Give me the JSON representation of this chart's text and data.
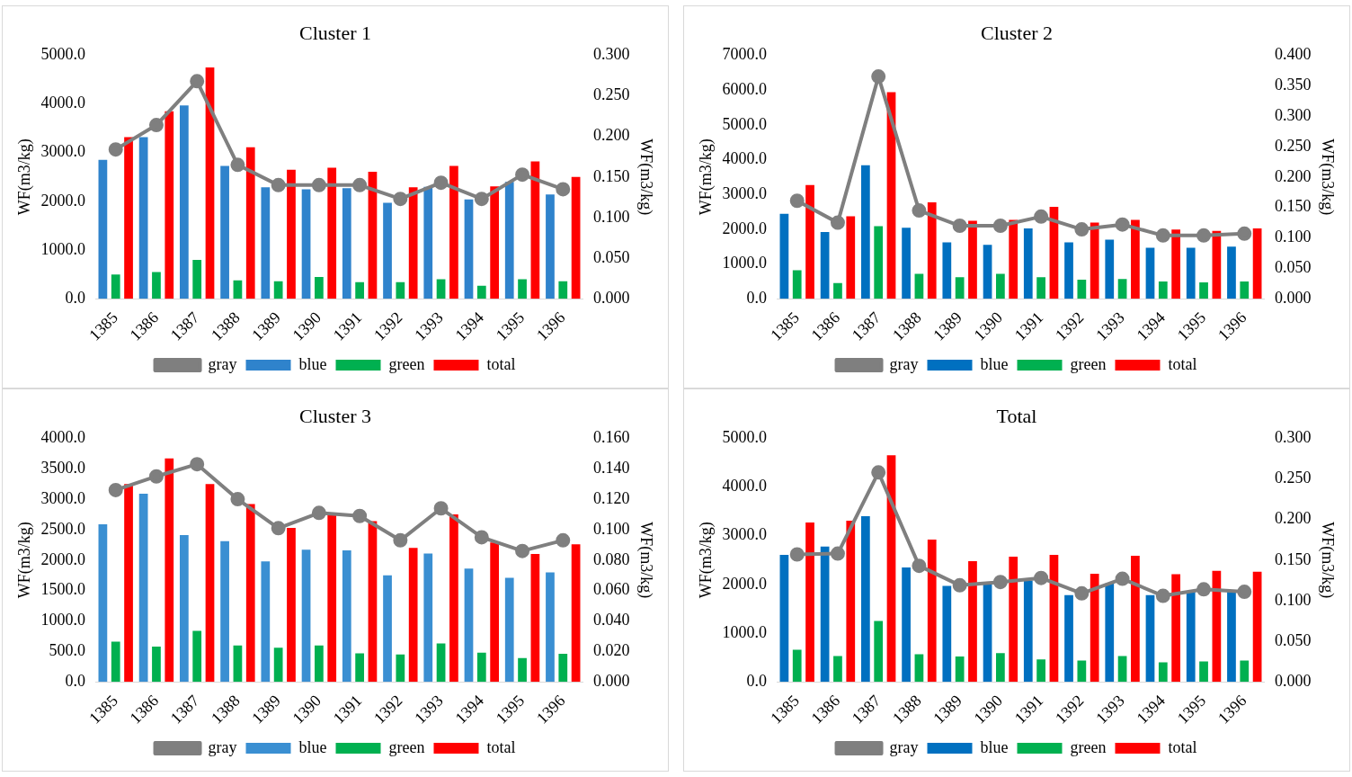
{
  "chart_data": [
    {
      "type": "bar",
      "title": "Cluster 1",
      "ylabel": "WF(m3/kg)",
      "y2label": "WF(m3/kg)",
      "categories": [
        "1385",
        "1386",
        "1387",
        "1388",
        "1389",
        "1390",
        "1391",
        "1392",
        "1393",
        "1394",
        "1395",
        "1396"
      ],
      "ylim": [
        0,
        5000
      ],
      "yticks": [
        {
          "value": 0,
          "label": "0.0"
        },
        {
          "value": 1000,
          "label": "1000.0"
        },
        {
          "value": 2000,
          "label": "2000.0"
        },
        {
          "value": 3000,
          "label": "3000.0"
        },
        {
          "value": 4000,
          "label": "4000.0"
        },
        {
          "value": 5000,
          "label": "5000.0"
        }
      ],
      "y2lim": [
        0,
        0.3
      ],
      "y2ticks": [
        {
          "value": 0,
          "label": "0.000"
        },
        {
          "value": 0.05,
          "label": "0.050"
        },
        {
          "value": 0.1,
          "label": "0.100"
        },
        {
          "value": 0.15,
          "label": "0.150"
        },
        {
          "value": 0.2,
          "label": "0.200"
        },
        {
          "value": 0.25,
          "label": "0.250"
        },
        {
          "value": 0.3,
          "label": "0.300"
        }
      ],
      "grid": false,
      "legend": "bottom",
      "series": [
        {
          "name": "blue",
          "color": "#2f83cc",
          "values": [
            2850,
            3320,
            3970,
            2730,
            2290,
            2250,
            2270,
            1970,
            2300,
            2040,
            2400,
            2140
          ]
        },
        {
          "name": "green",
          "color": "#00b050",
          "values": [
            500,
            550,
            800,
            380,
            360,
            450,
            340,
            340,
            400,
            270,
            400,
            360
          ]
        },
        {
          "name": "total",
          "color": "#ff0000",
          "values": [
            3320,
            3850,
            4750,
            3110,
            2650,
            2690,
            2610,
            2290,
            2730,
            2310,
            2820,
            2500
          ]
        },
        {
          "name": "gray",
          "color": "#7f7f7f",
          "type": "line",
          "axis": "y2",
          "marker": "circle",
          "values": [
            0.184,
            0.214,
            0.268,
            0.165,
            0.14,
            0.14,
            0.14,
            0.123,
            0.143,
            0.123,
            0.153,
            0.135
          ]
        }
      ]
    },
    {
      "type": "bar",
      "title": "Cluster 2",
      "ylabel": "WF(m3/kg)",
      "y2label": "WF(m3/kg)",
      "categories": [
        "1385",
        "1386",
        "1387",
        "1388",
        "1389",
        "1390",
        "1391",
        "1392",
        "1393",
        "1394",
        "1395",
        "1396"
      ],
      "ylim": [
        0,
        7000
      ],
      "yticks": [
        {
          "value": 0,
          "label": "0.0"
        },
        {
          "value": 1000,
          "label": "1000.0"
        },
        {
          "value": 2000,
          "label": "2000.0"
        },
        {
          "value": 3000,
          "label": "3000.0"
        },
        {
          "value": 4000,
          "label": "4000.0"
        },
        {
          "value": 5000,
          "label": "5000.0"
        },
        {
          "value": 6000,
          "label": "6000.0"
        },
        {
          "value": 7000,
          "label": "7000.0"
        }
      ],
      "y2lim": [
        0,
        0.4
      ],
      "y2ticks": [
        {
          "value": 0,
          "label": "0.000"
        },
        {
          "value": 0.05,
          "label": "0.050"
        },
        {
          "value": 0.1,
          "label": "0.100"
        },
        {
          "value": 0.15,
          "label": "0.150"
        },
        {
          "value": 0.2,
          "label": "0.200"
        },
        {
          "value": 0.25,
          "label": "0.250"
        },
        {
          "value": 0.3,
          "label": "0.300"
        },
        {
          "value": 0.35,
          "label": "0.350"
        },
        {
          "value": 0.4,
          "label": "0.400"
        }
      ],
      "grid": false,
      "legend": "bottom",
      "series": [
        {
          "name": "blue",
          "color": "#0070c0",
          "values": [
            2440,
            1920,
            3840,
            2040,
            1620,
            1550,
            2020,
            1620,
            1700,
            1470,
            1470,
            1500
          ]
        },
        {
          "name": "green",
          "color": "#00b050",
          "values": [
            820,
            450,
            2090,
            720,
            620,
            720,
            620,
            550,
            570,
            500,
            470,
            500
          ]
        },
        {
          "name": "total",
          "color": "#ff0000",
          "values": [
            3270,
            2370,
            5940,
            2770,
            2240,
            2270,
            2640,
            2190,
            2270,
            1990,
            1950,
            2020
          ]
        },
        {
          "name": "gray",
          "color": "#7f7f7f",
          "type": "line",
          "axis": "y2",
          "marker": "circle",
          "values": [
            0.161,
            0.125,
            0.365,
            0.145,
            0.12,
            0.12,
            0.135,
            0.114,
            0.122,
            0.104,
            0.104,
            0.107
          ]
        }
      ]
    },
    {
      "type": "bar",
      "title": "Cluster 3",
      "ylabel": "WF(m3/kg)",
      "y2label": "WF(m3/kg)",
      "categories": [
        "1385",
        "1386",
        "1387",
        "1388",
        "1389",
        "1390",
        "1391",
        "1392",
        "1393",
        "1394",
        "1395",
        "1396"
      ],
      "ylim": [
        0,
        4000
      ],
      "yticks": [
        {
          "value": 0,
          "label": "0.0"
        },
        {
          "value": 500,
          "label": "500.0"
        },
        {
          "value": 1000,
          "label": "1000.0"
        },
        {
          "value": 1500,
          "label": "1500.0"
        },
        {
          "value": 2000,
          "label": "2000.0"
        },
        {
          "value": 2500,
          "label": "2500.0"
        },
        {
          "value": 3000,
          "label": "3000.0"
        },
        {
          "value": 3500,
          "label": "3500.0"
        },
        {
          "value": 4000,
          "label": "4000.0"
        }
      ],
      "y2lim": [
        0,
        0.16
      ],
      "y2ticks": [
        {
          "value": 0,
          "label": "0.000"
        },
        {
          "value": 0.02,
          "label": "0.020"
        },
        {
          "value": 0.04,
          "label": "0.040"
        },
        {
          "value": 0.06,
          "label": "0.060"
        },
        {
          "value": 0.08,
          "label": "0.080"
        },
        {
          "value": 0.1,
          "label": "0.100"
        },
        {
          "value": 0.12,
          "label": "0.120"
        },
        {
          "value": 0.14,
          "label": "0.140"
        },
        {
          "value": 0.16,
          "label": "0.160"
        }
      ],
      "grid": false,
      "legend": "bottom",
      "series": [
        {
          "name": "blue",
          "color": "#3a8fd2",
          "values": [
            2590,
            3090,
            2410,
            2310,
            1980,
            2170,
            2160,
            1750,
            2110,
            1860,
            1710,
            1800
          ]
        },
        {
          "name": "green",
          "color": "#00b050",
          "values": [
            660,
            580,
            840,
            600,
            560,
            600,
            470,
            450,
            630,
            480,
            390,
            460
          ]
        },
        {
          "name": "total",
          "color": "#ff0000",
          "values": [
            3250,
            3670,
            3250,
            2920,
            2530,
            2740,
            2640,
            2200,
            2750,
            2290,
            2100,
            2260
          ]
        },
        {
          "name": "gray",
          "color": "#7f7f7f",
          "type": "line",
          "axis": "y2",
          "marker": "circle",
          "values": [
            0.126,
            0.135,
            0.143,
            0.12,
            0.101,
            0.111,
            0.109,
            0.093,
            0.114,
            0.095,
            0.086,
            0.093
          ]
        }
      ]
    },
    {
      "type": "bar",
      "title": "Total",
      "ylabel": "WF(m3/kg)",
      "y2label": "WF(m3/kg)",
      "categories": [
        "1385",
        "1386",
        "1387",
        "1388",
        "1389",
        "1390",
        "1391",
        "1392",
        "1393",
        "1394",
        "1395",
        "1396"
      ],
      "ylim": [
        0,
        5000
      ],
      "yticks": [
        {
          "value": 0,
          "label": "0.0"
        },
        {
          "value": 1000,
          "label": "1000.0"
        },
        {
          "value": 2000,
          "label": "2000.0"
        },
        {
          "value": 3000,
          "label": "3000.0"
        },
        {
          "value": 4000,
          "label": "4000.0"
        },
        {
          "value": 5000,
          "label": "5000.0"
        }
      ],
      "y2lim": [
        0,
        0.3
      ],
      "y2ticks": [
        {
          "value": 0,
          "label": "0.000"
        },
        {
          "value": 0.05,
          "label": "0.050"
        },
        {
          "value": 0.1,
          "label": "0.100"
        },
        {
          "value": 0.15,
          "label": "0.150"
        },
        {
          "value": 0.2,
          "label": "0.200"
        },
        {
          "value": 0.25,
          "label": "0.250"
        },
        {
          "value": 0.3,
          "label": "0.300"
        }
      ],
      "grid": false,
      "legend": "bottom",
      "series": [
        {
          "name": "blue",
          "color": "#0070c0",
          "values": [
            2610,
            2780,
            3400,
            2350,
            1970,
            2020,
            2080,
            1780,
            2020,
            1780,
            1860,
            1860
          ]
        },
        {
          "name": "green",
          "color": "#00b050",
          "values": [
            660,
            530,
            1250,
            570,
            520,
            590,
            460,
            440,
            530,
            400,
            420,
            440
          ]
        },
        {
          "name": "total",
          "color": "#ff0000",
          "values": [
            3270,
            3310,
            4650,
            2920,
            2480,
            2570,
            2610,
            2220,
            2590,
            2210,
            2280,
            2260
          ]
        },
        {
          "name": "gray",
          "color": "#7f7f7f",
          "type": "line",
          "axis": "y2",
          "marker": "circle",
          "values": [
            0.157,
            0.158,
            0.258,
            0.143,
            0.119,
            0.123,
            0.128,
            0.109,
            0.127,
            0.106,
            0.114,
            0.111
          ]
        }
      ]
    }
  ]
}
